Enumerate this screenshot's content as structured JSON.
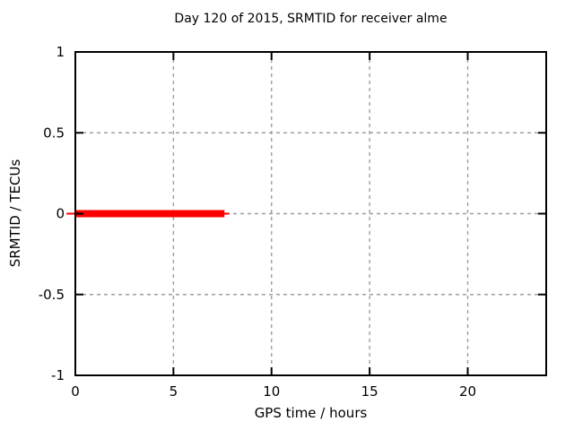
{
  "chart_data": {
    "type": "line",
    "title": "Day 120 of 2015, SRMTID for receiver alme",
    "xlabel": "GPS time / hours",
    "ylabel": "SRMTID / TECUs",
    "xlim": [
      0,
      24
    ],
    "ylim": [
      -1,
      1
    ],
    "x_ticks": [
      {
        "value": 0,
        "label": "0"
      },
      {
        "value": 5,
        "label": "5"
      },
      {
        "value": 10,
        "label": "10"
      },
      {
        "value": 15,
        "label": "15"
      },
      {
        "value": 20,
        "label": "20"
      }
    ],
    "y_ticks": [
      {
        "value": 1,
        "label": "1"
      },
      {
        "value": 0.5,
        "label": "0.5"
      },
      {
        "value": 0,
        "label": "0"
      },
      {
        "value": -0.5,
        "label": "-0.5"
      },
      {
        "value": -1,
        "label": "-1"
      }
    ],
    "grid": true,
    "legend": "none",
    "series": [
      {
        "name": "SRMTID",
        "color": "#ff0000",
        "x": [
          0,
          7.6
        ],
        "values": [
          0,
          0
        ],
        "segments": [
          {
            "x_start": -0.45,
            "x_end": 7.85,
            "y": 0,
            "thickness_px": 2
          },
          {
            "x_start": 0,
            "x_end": 7.6,
            "y": 0,
            "thickness_px": 8
          }
        ]
      }
    ],
    "colors": {
      "background": "#ffffff",
      "axis": "#000000",
      "grid": "#9e9e9e",
      "text": "#000000",
      "series": "#ff0000"
    }
  }
}
